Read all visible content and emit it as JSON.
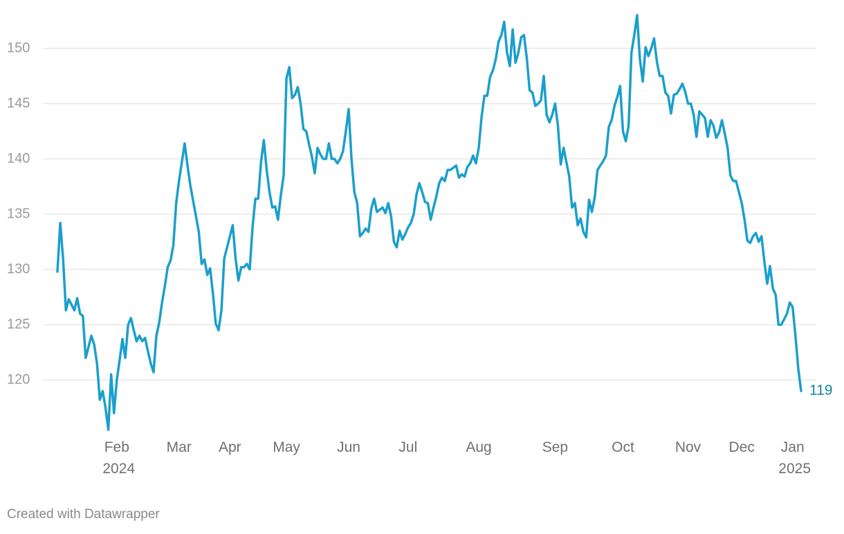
{
  "chart_data": {
    "type": "line",
    "footer": "Created with Datawrapper",
    "categories": [
      null,
      null,
      null,
      null,
      null,
      null,
      null,
      null,
      null,
      null,
      null,
      null,
      null,
      null,
      null,
      null,
      null,
      null,
      null,
      null,
      null,
      "Feb 2024",
      null,
      null,
      null,
      null,
      null,
      null,
      null,
      null,
      null,
      null,
      null,
      null,
      null,
      null,
      null,
      null,
      null,
      null,
      null,
      null,
      null,
      "Mar",
      null,
      null,
      null,
      null,
      null,
      null,
      null,
      null,
      null,
      null,
      null,
      null,
      null,
      null,
      null,
      null,
      null,
      "Apr",
      null,
      null,
      null,
      null,
      null,
      null,
      null,
      null,
      null,
      null,
      null,
      null,
      null,
      null,
      null,
      null,
      null,
      null,
      null,
      "May",
      null,
      null,
      null,
      null,
      null,
      null,
      null,
      null,
      null,
      null,
      null,
      null,
      null,
      null,
      null,
      null,
      null,
      null,
      null,
      null,
      null,
      "Jun",
      null,
      null,
      null,
      null,
      null,
      null,
      null,
      null,
      null,
      null,
      null,
      null,
      null,
      null,
      null,
      null,
      null,
      null,
      null,
      null,
      "Jul",
      null,
      null,
      null,
      null,
      null,
      null,
      null,
      null,
      null,
      null,
      null,
      null,
      null,
      null,
      null,
      null,
      null,
      null,
      null,
      null,
      null,
      null,
      null,
      null,
      "Aug",
      null,
      null,
      null,
      null,
      null,
      null,
      null,
      null,
      null,
      null,
      null,
      null,
      null,
      null,
      null,
      null,
      null,
      null,
      null,
      null,
      null,
      null,
      null,
      null,
      null,
      null,
      "Sep",
      null,
      null,
      null,
      null,
      null,
      null,
      null,
      null,
      null,
      null,
      null,
      null,
      null,
      null,
      null,
      null,
      null,
      null,
      null,
      null,
      null,
      null,
      null,
      "Oct",
      null,
      null,
      null,
      null,
      null,
      null,
      null,
      null,
      null,
      null,
      null,
      null,
      null,
      null,
      null,
      null,
      null,
      null,
      null,
      null,
      null,
      null,
      "Nov",
      null,
      null,
      null,
      null,
      null,
      null,
      null,
      null,
      null,
      null,
      null,
      null,
      null,
      null,
      null,
      null,
      null,
      null,
      "Dec",
      null,
      null,
      null,
      null,
      null,
      null,
      null,
      null,
      null,
      null,
      null,
      null,
      null,
      null,
      null,
      null,
      null,
      "Jan 2025",
      null,
      null,
      null
    ],
    "series": [
      {
        "color": "#1b9fcb",
        "label_color": "#12869f",
        "values": [
          129.8,
          134.2,
          131,
          126.3,
          127.3,
          126.8,
          126.3,
          127.4,
          126,
          125.8,
          122,
          123,
          124,
          123.2,
          121.5,
          118.2,
          119,
          117.5,
          115.5,
          120.5,
          117,
          120,
          121.8,
          123.7,
          122,
          125,
          125.6,
          124.5,
          123.5,
          124,
          123.5,
          123.8,
          122.6,
          121.5,
          120.7,
          124,
          125.2,
          127,
          128.5,
          130.2,
          130.8,
          132.2,
          136,
          138,
          139.7,
          141.4,
          139.4,
          137.6,
          136.2,
          134.8,
          133.4,
          130.5,
          130.9,
          129.5,
          130.1,
          127.8,
          125.1,
          124.5,
          126.3,
          131,
          132,
          133,
          134,
          131,
          129,
          130.2,
          130.2,
          130.5,
          130,
          133.8,
          136.4,
          136.4,
          139.7,
          141.7,
          139,
          137,
          135.6,
          135.7,
          134.5,
          136.7,
          138.5,
          147.3,
          148.3,
          145.5,
          145.8,
          146.5,
          145,
          142.7,
          142.5,
          141.3,
          140.2,
          138.7,
          141,
          140.4,
          140,
          140,
          141.4,
          140,
          140,
          139.6,
          140,
          140.7,
          142.5,
          144.5,
          140,
          137,
          136,
          133,
          133.3,
          133.7,
          133.4,
          135.5,
          136.4,
          135.2,
          135.4,
          135.6,
          135.1,
          136,
          134.8,
          132.5,
          132,
          133.5,
          132.7,
          133.2,
          133.8,
          134.2,
          135,
          136.8,
          137.8,
          137,
          136.1,
          136,
          134.5,
          135.6,
          136.6,
          137.8,
          138.3,
          138,
          139,
          139,
          139.2,
          139.4,
          138.3,
          138.6,
          138.4,
          139.3,
          139.6,
          140.3,
          139.6,
          141,
          143.8,
          145.7,
          145.7,
          147.4,
          148,
          149,
          150.6,
          151.2,
          152.4,
          149.6,
          148.4,
          151.7,
          148.7,
          149.6,
          151,
          151.2,
          149.1,
          146.2,
          146,
          144.8,
          145,
          145.3,
          147.5,
          144,
          143.3,
          144,
          145,
          143,
          139.5,
          141,
          139.7,
          138.4,
          135.6,
          136,
          134,
          134.6,
          133.4,
          132.9,
          136.3,
          135.2,
          136.5,
          139,
          139.4,
          139.8,
          140.3,
          142.9,
          143.5,
          144.8,
          145.6,
          146.6,
          142.5,
          141.6,
          143,
          149.6,
          151.2,
          153,
          149,
          147,
          150.1,
          149.3,
          150,
          150.9,
          148.8,
          147.5,
          147.5,
          146,
          145.7,
          144.1,
          145.8,
          145.9,
          146.3,
          146.8,
          146.1,
          145,
          145,
          144,
          142,
          144.3,
          144,
          143.7,
          142,
          143.5,
          143,
          141.9,
          142.4,
          143.5,
          142.3,
          141,
          138.5,
          138,
          138,
          137,
          136,
          134.5,
          132.6,
          132.4,
          133,
          133.3,
          132.5,
          133,
          130.7,
          128.7,
          130.3,
          128.3,
          127.7,
          125,
          125,
          125.5,
          126,
          127,
          126.6,
          124,
          121,
          119
        ]
      }
    ],
    "ylim": [
      115,
      153
    ],
    "yticks": [
      120,
      125,
      130,
      135,
      140,
      145,
      150
    ],
    "grid": true,
    "end_label": true
  }
}
